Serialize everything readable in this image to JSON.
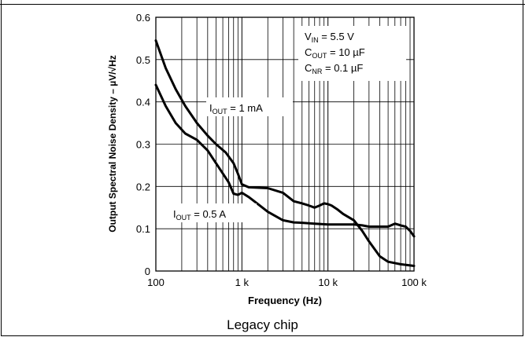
{
  "caption": "Legacy chip",
  "chart_data": {
    "type": "line",
    "xlabel": "Frequency (Hz)",
    "ylabel": "Output Spectral Noise Density – µV/√Hz",
    "x_scale": "log",
    "xlim": [
      100,
      100000
    ],
    "ylim": [
      0,
      0.6
    ],
    "x_ticks": [
      100,
      1000,
      10000,
      100000
    ],
    "x_tick_labels": [
      "100",
      "1 k",
      "10 k",
      "100 k"
    ],
    "y_ticks": [
      0,
      0.1,
      0.2,
      0.3,
      0.4,
      0.5,
      0.6
    ],
    "y_tick_labels": [
      "0",
      "0.1",
      "0.2",
      "0.3",
      "0.4",
      "0.5",
      "0.6"
    ],
    "grid": true,
    "conditions": [
      {
        "main": "V",
        "sub": "IN",
        "rest": " = 5.5 V"
      },
      {
        "main": "C",
        "sub": "OUT",
        "rest": " = 10 µF"
      },
      {
        "main": "C",
        "sub": "NR",
        "rest": " = 0.1 µF"
      }
    ],
    "series": [
      {
        "label_main": "I",
        "label_sub": "OUT",
        "label_rest": " = 1 mA",
        "x": [
          100,
          130,
          170,
          220,
          300,
          400,
          500,
          650,
          800,
          900,
          1000,
          1200,
          1500,
          2000,
          3000,
          4000,
          5000,
          6000,
          7000,
          8000,
          9000,
          10000,
          11000,
          13000,
          15000,
          20000,
          25000,
          30000,
          40000,
          50000,
          70000,
          100000
        ],
        "y": [
          0.545,
          0.48,
          0.43,
          0.39,
          0.35,
          0.32,
          0.3,
          0.28,
          0.255,
          0.23,
          0.205,
          0.198,
          0.197,
          0.196,
          0.185,
          0.165,
          0.16,
          0.155,
          0.15,
          0.155,
          0.16,
          0.158,
          0.155,
          0.145,
          0.135,
          0.12,
          0.095,
          0.07,
          0.035,
          0.022,
          0.016,
          0.012
        ]
      },
      {
        "label_main": "I",
        "label_sub": "OUT",
        "label_rest": " = 0.5 A",
        "x": [
          100,
          130,
          170,
          220,
          300,
          400,
          500,
          700,
          800,
          900,
          1000,
          1200,
          1500,
          2000,
          3000,
          4000,
          5000,
          7000,
          10000,
          15000,
          20000,
          25000,
          30000,
          40000,
          50000,
          60000,
          70000,
          80000,
          90000,
          100000
        ],
        "y": [
          0.44,
          0.39,
          0.35,
          0.325,
          0.31,
          0.285,
          0.255,
          0.21,
          0.183,
          0.18,
          0.185,
          0.175,
          0.16,
          0.14,
          0.12,
          0.115,
          0.114,
          0.112,
          0.11,
          0.11,
          0.11,
          0.108,
          0.105,
          0.105,
          0.105,
          0.112,
          0.108,
          0.105,
          0.095,
          0.082
        ]
      }
    ]
  }
}
